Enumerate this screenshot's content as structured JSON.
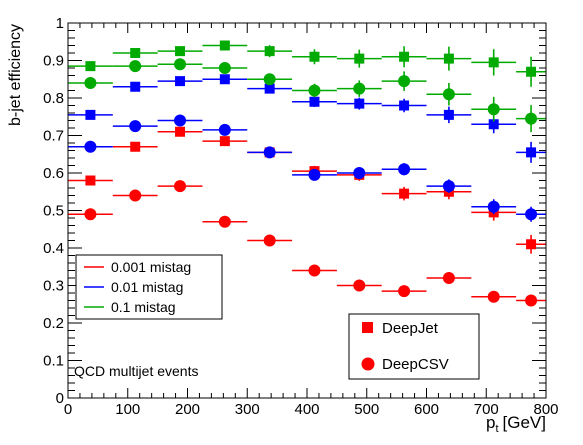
{
  "chart_data": {
    "type": "scatter",
    "xlabel": "p",
    "xlabel_sub": "t",
    "xlabel_unit": "[GeV]",
    "ylabel": "b-jet efficiency",
    "xlim": [
      0,
      800
    ],
    "ylim": [
      0,
      1
    ],
    "x_ticks": [
      "0",
      "100",
      "200",
      "300",
      "400",
      "500",
      "600",
      "700",
      "800"
    ],
    "y_ticks": [
      "0",
      "0.1",
      "0.2",
      "0.3",
      "0.4",
      "0.5",
      "0.6",
      "0.7",
      "0.8",
      "0.9",
      "1"
    ],
    "annotation": "QCD multijet events",
    "legend_mistag": {
      "placement": "bottom-left",
      "entries": [
        {
          "label": "0.001 mistag",
          "color": "#ff0000"
        },
        {
          "label": "0.01 mistag",
          "color": "#0000ff"
        },
        {
          "label": "0.1 mistag",
          "color": "#00aa00"
        }
      ]
    },
    "legend_tagger": {
      "placement": "bottom-right",
      "entries": [
        {
          "label": "DeepJet",
          "marker": "square"
        },
        {
          "label": "DeepCSV",
          "marker": "circle"
        }
      ]
    },
    "bins": [
      [
        0,
        75
      ],
      [
        75,
        150
      ],
      [
        150,
        225
      ],
      [
        225,
        300
      ],
      [
        300,
        375
      ],
      [
        375,
        450
      ],
      [
        450,
        525
      ],
      [
        525,
        600
      ],
      [
        600,
        675
      ],
      [
        675,
        750
      ],
      [
        750,
        800
      ]
    ],
    "series": [
      {
        "tagger": "DeepJet",
        "mistag": "0.001 mistag",
        "color": "#ff0000",
        "marker": "square",
        "values": [
          0.58,
          0.67,
          0.71,
          0.685,
          0.655,
          0.605,
          0.595,
          0.545,
          0.55,
          0.495,
          0.41
        ],
        "errors": [
          0.006,
          0.007,
          0.008,
          0.01,
          0.012,
          0.014,
          0.016,
          0.018,
          0.02,
          0.022,
          0.025
        ]
      },
      {
        "tagger": "DeepCSV",
        "mistag": "0.001 mistag",
        "color": "#ff0000",
        "marker": "circle",
        "values": [
          0.49,
          0.54,
          0.565,
          0.47,
          0.42,
          0.34,
          0.3,
          0.285,
          0.32,
          0.27,
          0.26
        ],
        "errors": [
          0.005,
          0.005,
          0.006,
          0.006,
          0.006,
          0.007,
          0.008,
          0.009,
          0.01,
          0.01,
          0.01
        ]
      },
      {
        "tagger": "DeepJet",
        "mistag": "0.01 mistag",
        "color": "#0000ff",
        "marker": "square",
        "values": [
          0.755,
          0.83,
          0.845,
          0.85,
          0.825,
          0.79,
          0.785,
          0.78,
          0.755,
          0.73,
          0.655
        ],
        "errors": [
          0.006,
          0.007,
          0.008,
          0.01,
          0.012,
          0.014,
          0.016,
          0.018,
          0.022,
          0.024,
          0.028
        ]
      },
      {
        "tagger": "DeepCSV",
        "mistag": "0.01 mistag",
        "color": "#0000ff",
        "marker": "circle",
        "values": [
          0.67,
          0.725,
          0.74,
          0.715,
          0.655,
          0.595,
          0.6,
          0.61,
          0.565,
          0.51,
          0.49
        ],
        "errors": [
          0.005,
          0.006,
          0.007,
          0.008,
          0.01,
          0.012,
          0.014,
          0.016,
          0.018,
          0.02,
          0.02
        ]
      },
      {
        "tagger": "DeepJet",
        "mistag": "0.1 mistag",
        "color": "#00aa00",
        "marker": "square",
        "values": [
          0.885,
          0.92,
          0.925,
          0.94,
          0.925,
          0.91,
          0.905,
          0.91,
          0.905,
          0.895,
          0.87
        ],
        "errors": [
          0.006,
          0.008,
          0.01,
          0.012,
          0.016,
          0.02,
          0.024,
          0.028,
          0.032,
          0.035,
          0.04
        ]
      },
      {
        "tagger": "DeepCSV",
        "mistag": "0.1 mistag",
        "color": "#00aa00",
        "marker": "circle",
        "values": [
          0.84,
          0.885,
          0.89,
          0.88,
          0.85,
          0.82,
          0.825,
          0.845,
          0.81,
          0.77,
          0.745
        ],
        "errors": [
          0.006,
          0.007,
          0.009,
          0.012,
          0.015,
          0.018,
          0.022,
          0.026,
          0.03,
          0.033,
          0.036
        ]
      }
    ]
  }
}
